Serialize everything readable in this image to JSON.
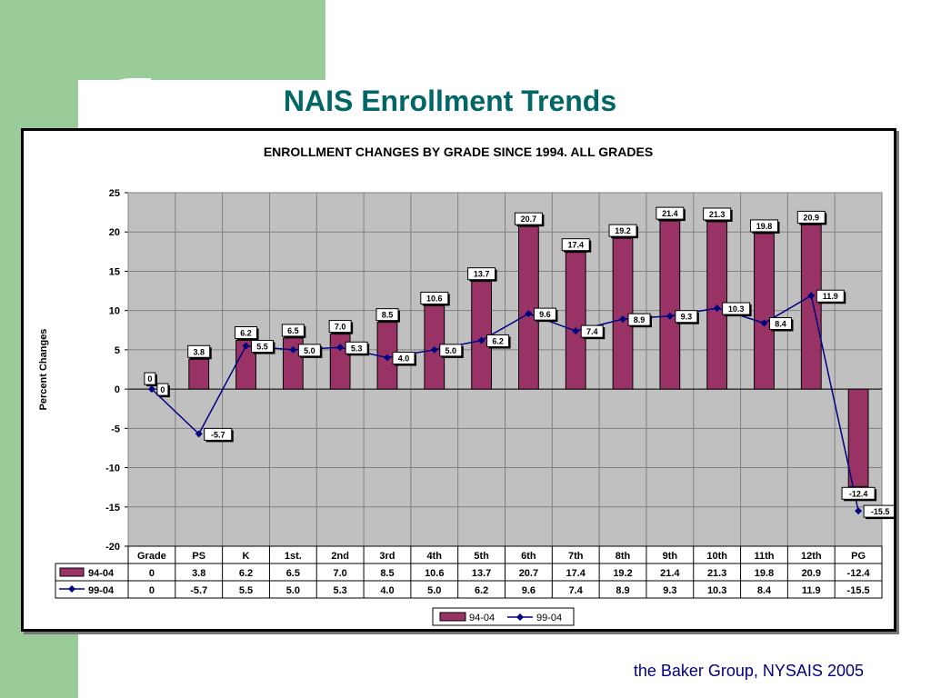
{
  "slide": {
    "title": "NAIS Enrollment Trends",
    "footer": "the Baker Group, NYSAIS 2005"
  },
  "colors": {
    "bar_fill": "#993366",
    "line": "#000080",
    "plot_bg": "#c0c0c0",
    "title_color": "#006666",
    "side_band": "#99cc99"
  },
  "chart_data": {
    "type": "bar",
    "title": "ENROLLMENT CHANGES BY GRADE SINCE 1994. ALL GRADES",
    "ylabel": "Percent Changes",
    "ylim": [
      -20,
      25
    ],
    "y_ticks": [
      25,
      20,
      15,
      10,
      5,
      0,
      -5,
      -10,
      -15,
      -20
    ],
    "grid": true,
    "legend_position": "bottom-center",
    "data_table_header": "Grade",
    "categories": [
      "PS",
      "K",
      "1st.",
      "2nd",
      "3rd",
      "4th",
      "5th",
      "6th",
      "7th",
      "8th",
      "9th",
      "10th",
      "11th",
      "12th",
      "PG"
    ],
    "first_column_values": [
      "0",
      "0"
    ],
    "first_column_labels": [
      "0",
      "0"
    ],
    "series": [
      {
        "name": "94-04",
        "type": "bar",
        "values": [
          3.8,
          6.2,
          6.5,
          7.0,
          8.5,
          10.6,
          13.7,
          20.7,
          17.4,
          19.2,
          21.4,
          21.3,
          19.8,
          20.9,
          -12.4
        ],
        "labels": [
          "3.8",
          "6.2",
          "6.5",
          "7.0",
          "8.5",
          "10.6",
          "13.7",
          "20.7",
          "17.4",
          "19.2",
          "21.4",
          "21.3",
          "19.8",
          "20.9",
          "-12.4"
        ]
      },
      {
        "name": "99-04",
        "type": "line",
        "values": [
          -5.7,
          5.5,
          5.0,
          5.3,
          4.0,
          5.0,
          6.2,
          9.6,
          7.4,
          8.9,
          9.3,
          10.3,
          8.4,
          11.9,
          -15.5
        ],
        "labels": [
          "-5.7",
          "5.5",
          "5.0",
          "5.3",
          "4.0",
          "5.0",
          "6.2",
          "9.6",
          "7.4",
          "8.9",
          "9.3",
          "10.3",
          "8.4",
          "11.9",
          "-15.5"
        ]
      }
    ]
  }
}
